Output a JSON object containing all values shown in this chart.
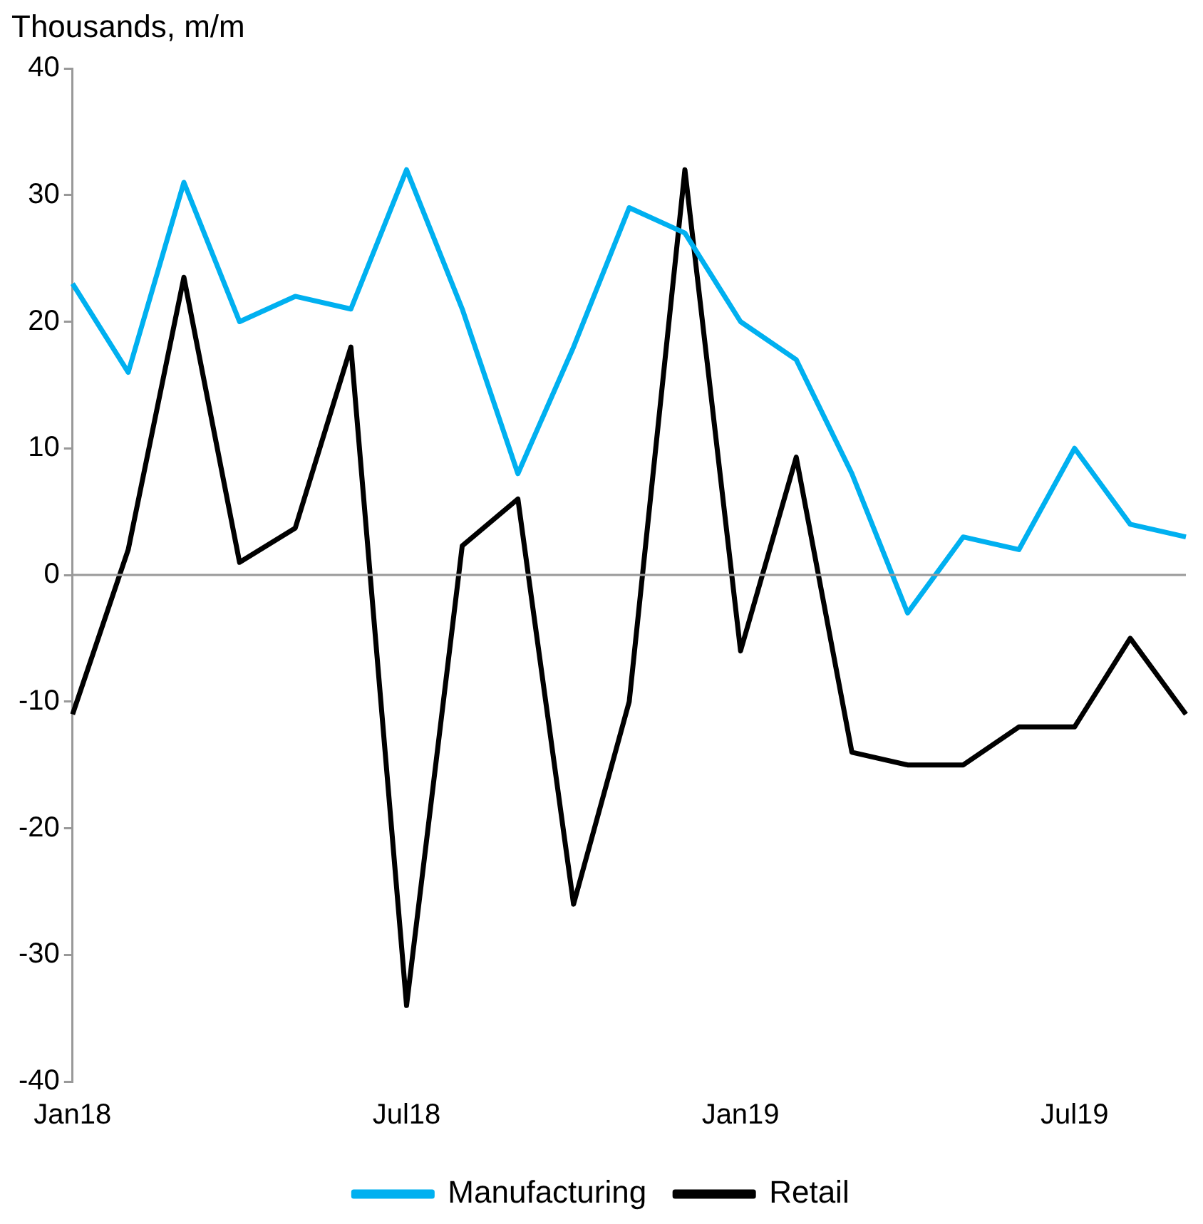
{
  "chart_data": {
    "type": "line",
    "ylabel": "Thousands, m/m",
    "categories": [
      "Jan18",
      null,
      null,
      null,
      null,
      null,
      "Jul18",
      null,
      null,
      null,
      null,
      null,
      "Jan19",
      null,
      null,
      null,
      null,
      null,
      "Jul19",
      null,
      null
    ],
    "series": [
      {
        "name": "Manufacturing",
        "color": "#00b0f0",
        "values": [
          23,
          16,
          31,
          20,
          22,
          21,
          32,
          21,
          8,
          18,
          29,
          27,
          20,
          17,
          8,
          -3,
          3,
          2,
          10,
          4,
          3
        ]
      },
      {
        "name": "Retail",
        "color": "#000000",
        "values": [
          -11,
          2,
          23.5,
          1,
          3.7,
          18,
          -34,
          2.3,
          6,
          -26,
          -10,
          32,
          -6,
          9.3,
          -14,
          -15,
          -15,
          -12,
          -12,
          -5,
          -11
        ]
      }
    ],
    "ylim": [
      -40,
      40
    ],
    "yticks": [
      -40,
      -30,
      -20,
      -10,
      0,
      10,
      20,
      30,
      40
    ],
    "grid": false,
    "ref_lines": [
      {
        "axis": "y",
        "value": 0,
        "color": "#999999"
      }
    ],
    "legend": "bottom",
    "marker": "none",
    "line_style": "solid"
  }
}
